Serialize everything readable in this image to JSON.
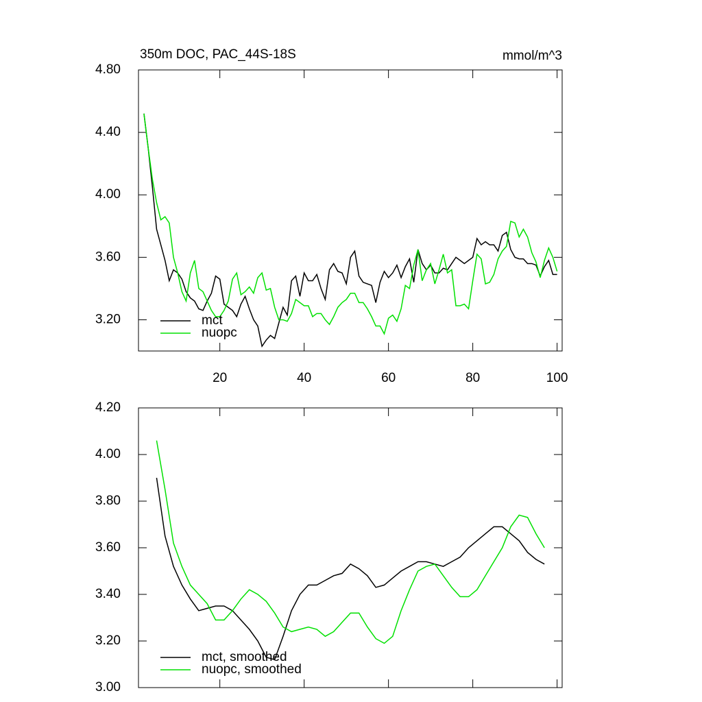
{
  "chart_data": [
    {
      "type": "line",
      "title": "350m DOC, PAC_44S-18S",
      "subtitle": "mmol/m^3",
      "x": [
        2,
        3,
        4,
        5,
        6,
        7,
        8,
        9,
        10,
        11,
        12,
        13,
        14,
        15,
        16,
        17,
        18,
        19,
        20,
        21,
        22,
        23,
        24,
        25,
        26,
        27,
        28,
        29,
        30,
        31,
        32,
        33,
        34,
        35,
        36,
        37,
        38,
        39,
        40,
        41,
        42,
        43,
        44,
        45,
        46,
        47,
        48,
        49,
        50,
        51,
        52,
        53,
        54,
        55,
        56,
        57,
        58,
        59,
        60,
        61,
        62,
        63,
        64,
        65,
        66,
        67,
        68,
        69,
        70,
        71,
        72,
        73,
        74,
        75,
        76,
        77,
        78,
        79,
        80,
        81,
        82,
        83,
        84,
        85,
        86,
        87,
        88,
        89,
        90,
        91,
        92,
        93,
        94,
        95,
        96,
        97,
        98,
        99,
        100
      ],
      "series": [
        {
          "name": "mct",
          "color": "#000000",
          "values": [
            4.52,
            4.3,
            4.05,
            3.78,
            3.68,
            3.58,
            3.45,
            3.52,
            3.5,
            3.46,
            3.38,
            3.34,
            3.32,
            3.27,
            3.26,
            3.32,
            3.37,
            3.48,
            3.46,
            3.3,
            3.28,
            3.26,
            3.22,
            3.3,
            3.35,
            3.27,
            3.2,
            3.16,
            3.03,
            3.07,
            3.1,
            3.08,
            3.18,
            3.28,
            3.23,
            3.45,
            3.48,
            3.35,
            3.5,
            3.45,
            3.45,
            3.49,
            3.4,
            3.33,
            3.52,
            3.56,
            3.51,
            3.5,
            3.43,
            3.6,
            3.64,
            3.48,
            3.44,
            3.43,
            3.42,
            3.31,
            3.44,
            3.51,
            3.47,
            3.5,
            3.55,
            3.47,
            3.54,
            3.59,
            3.44,
            3.65,
            3.56,
            3.52,
            3.55,
            3.5,
            3.5,
            3.53,
            3.52,
            3.56,
            3.6,
            3.58,
            3.56,
            3.58,
            3.6,
            3.72,
            3.68,
            3.7,
            3.68,
            3.68,
            3.64,
            3.74,
            3.76,
            3.65,
            3.6,
            3.59,
            3.59,
            3.56,
            3.56,
            3.55,
            3.48,
            3.54,
            3.58,
            3.49,
            3.49
          ]
        },
        {
          "name": "nuopc",
          "color": "#00e000",
          "values": [
            4.52,
            4.3,
            4.1,
            3.95,
            3.84,
            3.86,
            3.82,
            3.6,
            3.5,
            3.38,
            3.32,
            3.5,
            3.58,
            3.4,
            3.38,
            3.32,
            3.26,
            3.22,
            3.22,
            3.26,
            3.32,
            3.46,
            3.5,
            3.36,
            3.38,
            3.41,
            3.37,
            3.47,
            3.5,
            3.39,
            3.4,
            3.28,
            3.2,
            3.2,
            3.19,
            3.24,
            3.33,
            3.31,
            3.29,
            3.29,
            3.22,
            3.24,
            3.24,
            3.2,
            3.17,
            3.22,
            3.28,
            3.31,
            3.33,
            3.37,
            3.37,
            3.31,
            3.31,
            3.27,
            3.22,
            3.16,
            3.16,
            3.11,
            3.21,
            3.23,
            3.19,
            3.27,
            3.42,
            3.4,
            3.55,
            3.65,
            3.45,
            3.52,
            3.56,
            3.43,
            3.52,
            3.62,
            3.5,
            3.52,
            3.29,
            3.29,
            3.3,
            3.27,
            3.45,
            3.62,
            3.59,
            3.43,
            3.44,
            3.49,
            3.59,
            3.64,
            3.67,
            3.83,
            3.82,
            3.73,
            3.78,
            3.73,
            3.63,
            3.57,
            3.47,
            3.58,
            3.66,
            3.6,
            3.51
          ]
        }
      ],
      "xlim": [
        0.7,
        101.2
      ],
      "xticks": [
        20,
        40,
        60,
        80,
        100
      ],
      "ylim": [
        3.0,
        4.8
      ],
      "yticks": [
        {
          "value": 3.2,
          "label": "3.20"
        },
        {
          "value": 3.6,
          "label": "3.60"
        },
        {
          "value": 4.0,
          "label": "4.00"
        },
        {
          "value": 4.4,
          "label": "4.40"
        },
        {
          "value": 4.8,
          "label": "4.80"
        }
      ],
      "legend": "lower left"
    },
    {
      "type": "line",
      "x": [
        5,
        7,
        9,
        11,
        13,
        15,
        17,
        19,
        21,
        23,
        25,
        27,
        29,
        31,
        33,
        35,
        37,
        39,
        41,
        43,
        45,
        47,
        49,
        51,
        53,
        55,
        57,
        59,
        61,
        63,
        65,
        67,
        69,
        71,
        73,
        75,
        77,
        79,
        81,
        83,
        85,
        87,
        89,
        91,
        93,
        95,
        97
      ],
      "series": [
        {
          "name": "mct, smoothed",
          "color": "#000000",
          "values": [
            3.9,
            3.65,
            3.52,
            3.44,
            3.38,
            3.33,
            3.34,
            3.35,
            3.35,
            3.33,
            3.29,
            3.25,
            3.2,
            3.13,
            3.12,
            3.22,
            3.33,
            3.4,
            3.44,
            3.44,
            3.46,
            3.48,
            3.49,
            3.53,
            3.51,
            3.48,
            3.43,
            3.44,
            3.47,
            3.5,
            3.52,
            3.54,
            3.54,
            3.53,
            3.52,
            3.54,
            3.56,
            3.6,
            3.63,
            3.66,
            3.69,
            3.69,
            3.66,
            3.63,
            3.58,
            3.55,
            3.53
          ]
        },
        {
          "name": "nuopc, smoothed",
          "color": "#00e000",
          "values": [
            4.06,
            3.85,
            3.62,
            3.52,
            3.44,
            3.4,
            3.36,
            3.29,
            3.29,
            3.33,
            3.38,
            3.42,
            3.4,
            3.37,
            3.32,
            3.26,
            3.24,
            3.25,
            3.26,
            3.25,
            3.22,
            3.24,
            3.28,
            3.32,
            3.32,
            3.26,
            3.21,
            3.19,
            3.22,
            3.33,
            3.42,
            3.5,
            3.52,
            3.53,
            3.48,
            3.43,
            3.39,
            3.39,
            3.42,
            3.48,
            3.54,
            3.6,
            3.69,
            3.74,
            3.73,
            3.66,
            3.6
          ]
        }
      ],
      "xlim": [
        0.7,
        101.2
      ],
      "xticks": [
        20,
        40,
        60,
        80,
        100
      ],
      "ylim": [
        3.0,
        4.2
      ],
      "yticks": [
        {
          "value": 3.0,
          "label": "3.00"
        },
        {
          "value": 3.2,
          "label": "3.20"
        },
        {
          "value": 3.4,
          "label": "3.40"
        },
        {
          "value": 3.6,
          "label": "3.60"
        },
        {
          "value": 3.8,
          "label": "3.80"
        },
        {
          "value": 4.0,
          "label": "4.00"
        },
        {
          "value": 4.2,
          "label": "4.20"
        }
      ],
      "legend": "lower left"
    }
  ]
}
